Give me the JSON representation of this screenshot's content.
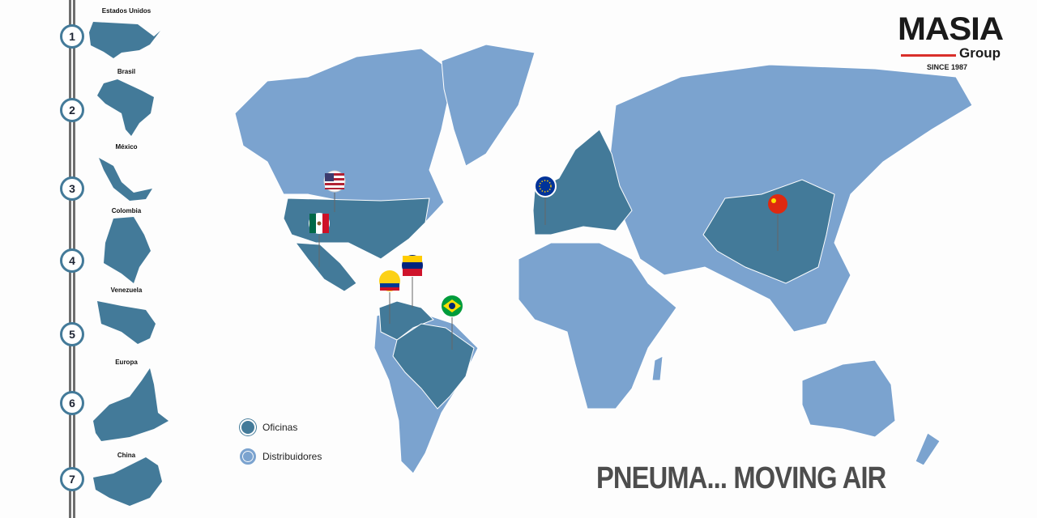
{
  "colors": {
    "office": "#437a99",
    "distributor": "#7ba3cf",
    "rail": "#6e6e6e",
    "accent_red": "#d92f2a"
  },
  "sidebar": {
    "items": [
      {
        "number": "1",
        "label": "Estados Unidos"
      },
      {
        "number": "2",
        "label": "Brasil"
      },
      {
        "number": "3",
        "label": "México"
      },
      {
        "number": "4",
        "label": "Colombia"
      },
      {
        "number": "5",
        "label": "Venezuela"
      },
      {
        "number": "6",
        "label": "Europa"
      },
      {
        "number": "7",
        "label": "China"
      }
    ]
  },
  "logo": {
    "name": "MASIA",
    "sub": "Group",
    "since": "SINCE 1987"
  },
  "legend": {
    "offices": "Oficinas",
    "distributors": "Distribuidores"
  },
  "slogan": "PNEUMA... MOVING AIR",
  "pins": [
    "usa-flag-icon",
    "mexico-flag-icon",
    "colombia-flag-icon",
    "venezuela-flag-icon",
    "brazil-flag-icon",
    "eu-flag-icon",
    "china-flag-icon"
  ]
}
